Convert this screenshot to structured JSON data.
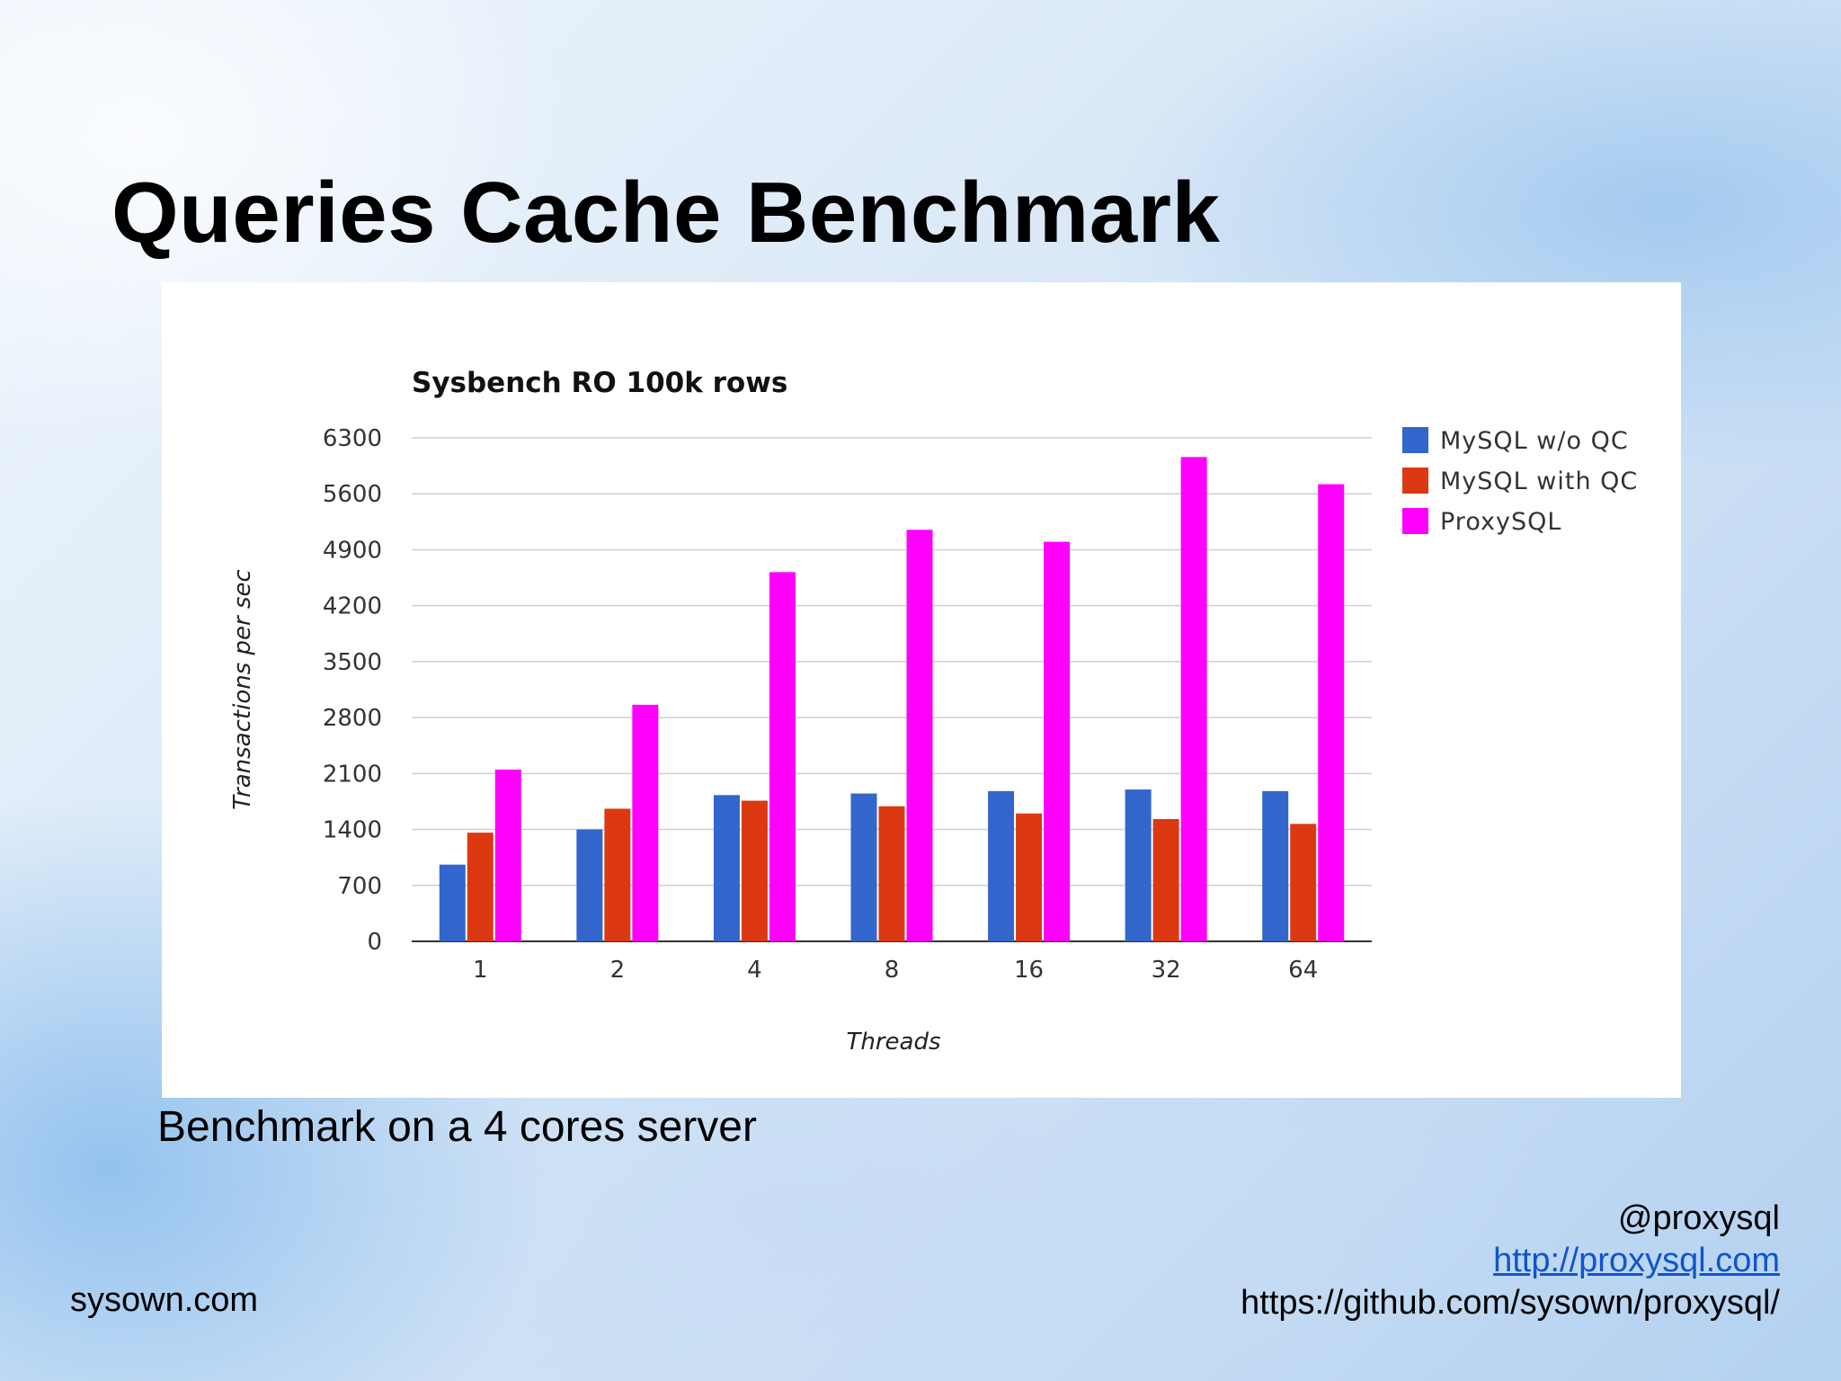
{
  "slide": {
    "title": "Queries Cache Benchmark",
    "caption": "Benchmark on a 4 cores server",
    "footer_left": "sysown.com",
    "footer_right": {
      "handle": "@proxysql",
      "website": "http://proxysql.com",
      "github": "https://github.com/sysown/proxysql/"
    }
  },
  "chart_data": {
    "type": "bar",
    "title": "Sysbench RO 100k rows",
    "xlabel": "Threads",
    "ylabel": "Transactions per sec",
    "categories": [
      "1",
      "2",
      "4",
      "8",
      "16",
      "32",
      "64"
    ],
    "yticks": [
      0,
      700,
      1400,
      2100,
      2800,
      3500,
      4200,
      4900,
      5600,
      6300
    ],
    "ylim": [
      0,
      6300
    ],
    "grid": true,
    "legend_position": "right",
    "series": [
      {
        "name": "MySQL w/o QC",
        "color": "#3366cc",
        "values": [
          960,
          1400,
          1830,
          1850,
          1880,
          1900,
          1880
        ]
      },
      {
        "name": "MySQL with QC",
        "color": "#dc3912",
        "values": [
          1360,
          1660,
          1760,
          1690,
          1600,
          1530,
          1470
        ]
      },
      {
        "name": "ProxySQL",
        "color": "#ff00ff",
        "values": [
          2150,
          2960,
          4620,
          5150,
          5000,
          6060,
          5720
        ]
      }
    ]
  }
}
